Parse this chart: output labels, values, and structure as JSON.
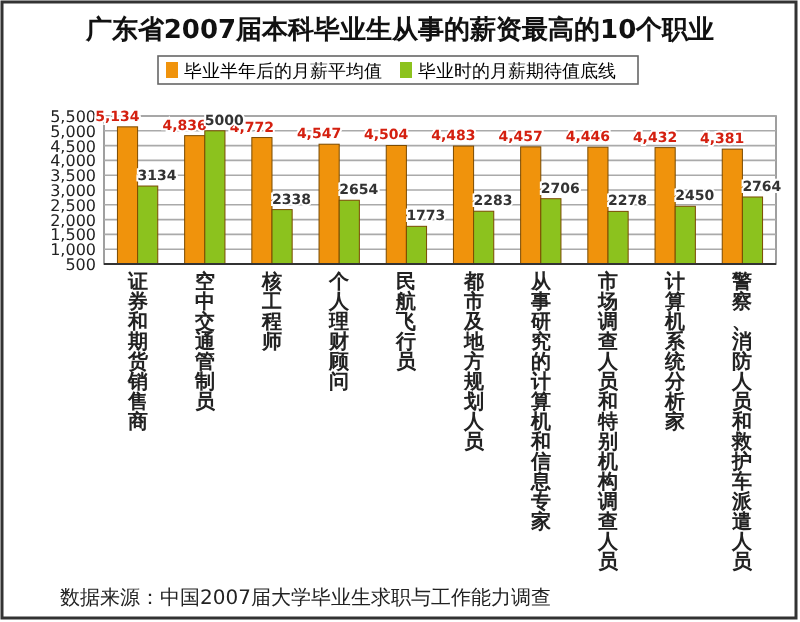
{
  "chart_data": {
    "type": "bar",
    "title": "广东省2007届本科毕业生从事的薪资最高的10个职业",
    "categories": [
      "证券和期货销售商",
      "空中交通管制员",
      "核工程师",
      "个人理财顾问",
      "民航飞行员",
      "都市及地方规划人员",
      "从事研究的计算机和信息专家",
      "市场调查人员和特别机构调查人员",
      "计算机系统分析家",
      "警察、消防人员和救护车派遣人员"
    ],
    "series": [
      {
        "name": "毕业半年后的月薪平均值",
        "color": "#f0930c",
        "values": [
          5134,
          4836,
          4772,
          4547,
          4504,
          4483,
          4457,
          4446,
          4432,
          4381
        ],
        "value_labels": [
          "5,134",
          "4,836",
          "4,772",
          "4,547",
          "4,504",
          "4,483",
          "4,457",
          "4,446",
          "4,432",
          "4,381"
        ]
      },
      {
        "name": "毕业时的月薪期待值底线",
        "color": "#8cc21e",
        "values": [
          3134,
          5000,
          2338,
          2654,
          1773,
          2283,
          2706,
          2278,
          2450,
          2764
        ],
        "value_labels": [
          "3134",
          "5000",
          "2338",
          "2654",
          "1773",
          "2283",
          "2706",
          "2278",
          "2450",
          "2764"
        ]
      }
    ],
    "ylim": [
      500,
      5500
    ],
    "yticks": [
      {
        "value": 500,
        "label": "500"
      },
      {
        "value": 1000,
        "label": "1,000"
      },
      {
        "value": 1500,
        "label": "1,500"
      },
      {
        "value": 2000,
        "label": "2,000"
      },
      {
        "value": 2500,
        "label": "2,500"
      },
      {
        "value": 3000,
        "label": "3,000"
      },
      {
        "value": 3500,
        "label": "3,500"
      },
      {
        "value": 4000,
        "label": "4,000"
      },
      {
        "value": 4500,
        "label": "4,500"
      },
      {
        "value": 5000,
        "label": "5,000"
      },
      {
        "value": 5500,
        "label": "5,500"
      }
    ],
    "grid": "y",
    "legend": "top",
    "annotations": [
      "数据来源：中国2007届大学毕业生求职与工作能力调查"
    ]
  }
}
